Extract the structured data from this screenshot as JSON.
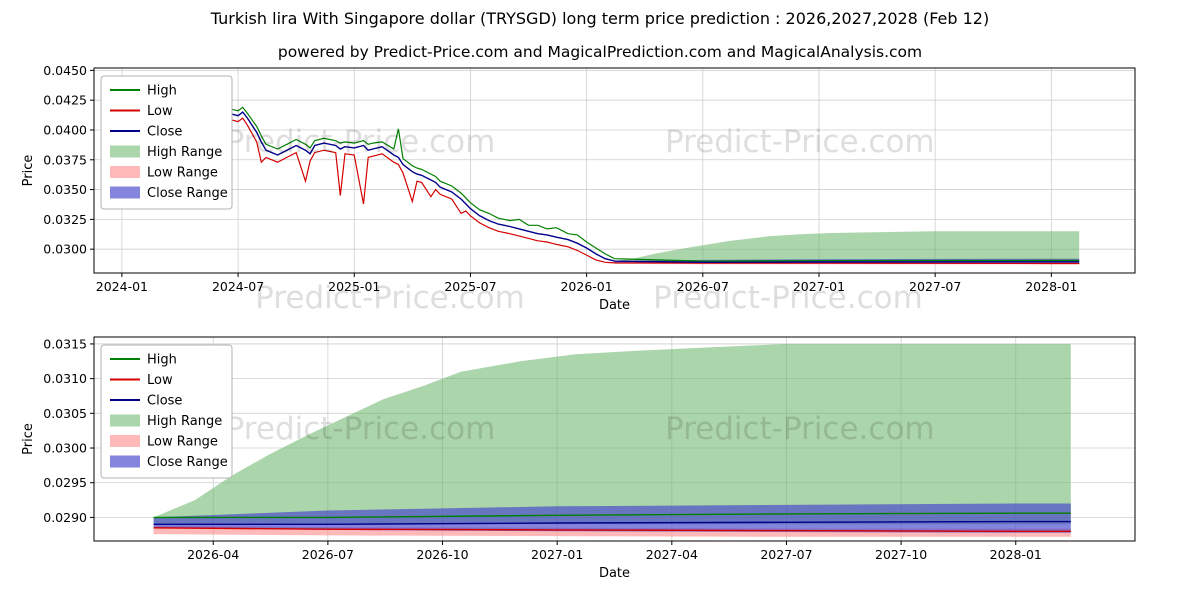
{
  "page": {
    "title": "Turkish lira With Singapore dollar (TRYSGD) long term price prediction : 2026,2027,2028 (Feb 12)",
    "subtitle": "powered by Predict-Price.com and MagicalPrediction.com and MagicalAnalysis.com",
    "watermark": "Predict-Price.com"
  },
  "colors": {
    "high_line": "#008000",
    "low_line": "#d40000",
    "close_line": "#00008b",
    "high_range": "#66b366",
    "low_range": "#ff8a8a",
    "close_range": "#4444cc",
    "grid": "#cfcfcf"
  },
  "chart_data": [
    {
      "type": "line",
      "title": "",
      "xlabel": "Date",
      "ylabel": "Price",
      "xlim": [
        2023.88,
        2028.36
      ],
      "ylim": [
        0.028,
        0.0452
      ],
      "grid": true,
      "legend_position": "upper-left",
      "xticks": {
        "values": [
          2024.0,
          2024.5,
          2025.0,
          2025.5,
          2026.0,
          2026.5,
          2027.0,
          2027.5,
          2028.0
        ],
        "labels": [
          "2024-01",
          "2024-07",
          "2025-01",
          "2025-07",
          "2026-01",
          "2026-07",
          "2027-01",
          "2027-07",
          "2028-01"
        ]
      },
      "yticks": {
        "values": [
          0.03,
          0.0325,
          0.035,
          0.0375,
          0.04,
          0.0425,
          0.045
        ],
        "labels": [
          "0.0300",
          "0.0325",
          "0.0350",
          "0.0375",
          "0.0400",
          "0.0425",
          "0.0450"
        ]
      },
      "legend": [
        {
          "label": "High",
          "kind": "line",
          "color": "#008000"
        },
        {
          "label": "Low",
          "kind": "line",
          "color": "#d40000"
        },
        {
          "label": "Close",
          "kind": "line",
          "color": "#00008b"
        },
        {
          "label": "High Range",
          "kind": "patch",
          "color": "#66b366",
          "opacity": 0.55
        },
        {
          "label": "Low Range",
          "kind": "patch",
          "color": "#ff8a8a",
          "opacity": 0.6
        },
        {
          "label": "Close Range",
          "kind": "patch",
          "color": "#4444cc",
          "opacity": 0.65
        }
      ],
      "bands": [
        {
          "name": "high-range",
          "color": "#66b366",
          "opacity": 0.55,
          "x": [
            2026.12,
            2026.21,
            2026.29,
            2026.37,
            2026.46,
            2026.54,
            2026.62,
            2026.71,
            2026.79,
            2026.92,
            2027.04,
            2027.17,
            2027.33,
            2027.5,
            2027.75,
            2028.0,
            2028.12
          ],
          "upper": [
            0.029,
            0.02925,
            0.0296,
            0.0299,
            0.0302,
            0.03045,
            0.0307,
            0.0309,
            0.0311,
            0.03125,
            0.03135,
            0.0314,
            0.03145,
            0.0315,
            0.0315,
            0.0315,
            0.0315
          ],
          "lower": 0.0289
        },
        {
          "name": "low-range",
          "color": "#ff8a8a",
          "opacity": 0.6,
          "x": [
            2026.12,
            2026.5,
            2027.0,
            2027.5,
            2028.0,
            2028.12
          ],
          "upper": [
            0.02888,
            0.02886,
            0.02885,
            0.02884,
            0.02884,
            0.02884
          ],
          "lower": [
            0.02876,
            0.02874,
            0.02873,
            0.02872,
            0.02872,
            0.02872
          ]
        },
        {
          "name": "close-range",
          "color": "#4444cc",
          "opacity": 0.65,
          "x": [
            2026.12,
            2026.5,
            2027.0,
            2027.5,
            2028.0,
            2028.12
          ],
          "upper": [
            0.029,
            0.0291,
            0.02916,
            0.02918,
            0.0292,
            0.0292
          ],
          "lower": [
            0.02885,
            0.02882,
            0.0288,
            0.02879,
            0.02878,
            0.02878
          ]
        }
      ],
      "lines": [
        {
          "name": "High",
          "color": "#008000",
          "width": 1.2,
          "x": [
            2024.08,
            2024.12,
            2024.17,
            2024.21,
            2024.25,
            2024.29,
            2024.33,
            2024.37,
            2024.42,
            2024.46,
            2024.5,
            2024.52,
            2024.54,
            2024.58,
            2024.6,
            2024.62,
            2024.67,
            2024.71,
            2024.75,
            2024.79,
            2024.81,
            2024.83,
            2024.87,
            2024.92,
            2024.94,
            2024.96,
            2025.0,
            2025.04,
            2025.06,
            2025.08,
            2025.12,
            2025.17,
            2025.19,
            2025.21,
            2025.25,
            2025.27,
            2025.29,
            2025.33,
            2025.35,
            2025.37,
            2025.42,
            2025.46,
            2025.48,
            2025.5,
            2025.54,
            2025.58,
            2025.62,
            2025.67,
            2025.71,
            2025.75,
            2025.79,
            2025.83,
            2025.87,
            2025.92,
            2025.96,
            2026.0,
            2026.04,
            2026.08,
            2026.12,
            2026.5,
            2027.0,
            2027.5,
            2028.0,
            2028.12
          ],
          "y": [
            0.0433,
            0.0429,
            0.0425,
            0.0421,
            0.0418,
            0.042,
            0.0417,
            0.042,
            0.0415,
            0.0418,
            0.0416,
            0.0419,
            0.0414,
            0.0403,
            0.0395,
            0.0388,
            0.0384,
            0.0388,
            0.0392,
            0.0388,
            0.0385,
            0.0391,
            0.0393,
            0.0391,
            0.0389,
            0.039,
            0.0389,
            0.0391,
            0.0388,
            0.0389,
            0.039,
            0.0384,
            0.0401,
            0.0376,
            0.037,
            0.0368,
            0.0367,
            0.0363,
            0.0361,
            0.0357,
            0.0353,
            0.0347,
            0.0343,
            0.0339,
            0.0333,
            0.033,
            0.0326,
            0.0324,
            0.0325,
            0.032,
            0.032,
            0.0317,
            0.0318,
            0.0313,
            0.0312,
            0.0306,
            0.0301,
            0.0296,
            0.0292,
            0.029,
            0.02903,
            0.02905,
            0.02906,
            0.02906
          ]
        },
        {
          "name": "Low",
          "color": "#d40000",
          "width": 1.2,
          "x": [
            2024.08,
            2024.12,
            2024.17,
            2024.21,
            2024.25,
            2024.29,
            2024.33,
            2024.37,
            2024.42,
            2024.46,
            2024.5,
            2024.52,
            2024.54,
            2024.58,
            2024.6,
            2024.62,
            2024.67,
            2024.71,
            2024.75,
            2024.79,
            2024.81,
            2024.83,
            2024.87,
            2024.92,
            2024.94,
            2024.96,
            2025.0,
            2025.04,
            2025.06,
            2025.08,
            2025.12,
            2025.17,
            2025.19,
            2025.21,
            2025.25,
            2025.27,
            2025.29,
            2025.33,
            2025.35,
            2025.37,
            2025.42,
            2025.46,
            2025.48,
            2025.5,
            2025.54,
            2025.58,
            2025.62,
            2025.67,
            2025.71,
            2025.75,
            2025.79,
            2025.83,
            2025.87,
            2025.92,
            2025.96,
            2026.0,
            2026.04,
            2026.08,
            2026.12,
            2026.5,
            2027.0,
            2027.5,
            2028.0,
            2028.12
          ],
          "y": [
            0.0424,
            0.042,
            0.0416,
            0.0412,
            0.0409,
            0.0411,
            0.0408,
            0.0411,
            0.0406,
            0.0409,
            0.0407,
            0.041,
            0.0404,
            0.039,
            0.0373,
            0.0377,
            0.0373,
            0.0377,
            0.0381,
            0.0357,
            0.0374,
            0.0381,
            0.0383,
            0.0381,
            0.0345,
            0.038,
            0.0379,
            0.0338,
            0.0377,
            0.0378,
            0.038,
            0.0373,
            0.0371,
            0.0364,
            0.034,
            0.0357,
            0.0356,
            0.0344,
            0.035,
            0.0346,
            0.0342,
            0.033,
            0.0332,
            0.0328,
            0.0322,
            0.0318,
            0.0315,
            0.0313,
            0.0311,
            0.0309,
            0.0307,
            0.0306,
            0.0304,
            0.0302,
            0.0299,
            0.0295,
            0.0291,
            0.0289,
            0.02885,
            0.02883,
            0.02882,
            0.02881,
            0.0288,
            0.0288
          ]
        },
        {
          "name": "Close",
          "color": "#00008b",
          "width": 1.4,
          "x": [
            2024.08,
            2024.12,
            2024.17,
            2024.21,
            2024.25,
            2024.29,
            2024.33,
            2024.37,
            2024.42,
            2024.46,
            2024.5,
            2024.52,
            2024.54,
            2024.58,
            2024.6,
            2024.62,
            2024.67,
            2024.71,
            2024.75,
            2024.79,
            2024.81,
            2024.83,
            2024.87,
            2024.92,
            2024.94,
            2024.96,
            2025.0,
            2025.04,
            2025.06,
            2025.08,
            2025.12,
            2025.17,
            2025.19,
            2025.21,
            2025.25,
            2025.27,
            2025.29,
            2025.33,
            2025.35,
            2025.37,
            2025.42,
            2025.46,
            2025.48,
            2025.5,
            2025.54,
            2025.58,
            2025.62,
            2025.67,
            2025.71,
            2025.75,
            2025.79,
            2025.83,
            2025.87,
            2025.92,
            2025.96,
            2026.0,
            2026.04,
            2026.08,
            2026.12,
            2026.5,
            2027.0,
            2027.5,
            2028.0,
            2028.12
          ],
          "y": [
            0.0429,
            0.0425,
            0.0421,
            0.0417,
            0.0414,
            0.0416,
            0.0413,
            0.0416,
            0.0411,
            0.0414,
            0.0412,
            0.0415,
            0.041,
            0.0398,
            0.039,
            0.0383,
            0.0379,
            0.0383,
            0.0387,
            0.0383,
            0.038,
            0.0387,
            0.0389,
            0.0387,
            0.0384,
            0.0386,
            0.0385,
            0.0387,
            0.0383,
            0.0384,
            0.0386,
            0.0379,
            0.0377,
            0.0371,
            0.0365,
            0.0363,
            0.0362,
            0.0358,
            0.0356,
            0.0352,
            0.0348,
            0.0342,
            0.0338,
            0.0334,
            0.0328,
            0.0324,
            0.0321,
            0.0319,
            0.0317,
            0.0315,
            0.0313,
            0.0312,
            0.031,
            0.0308,
            0.0305,
            0.0301,
            0.0296,
            0.0292,
            0.029,
            0.0289,
            0.02892,
            0.02893,
            0.02894,
            0.02894
          ]
        }
      ]
    },
    {
      "type": "line",
      "title": "",
      "xlabel": "Date",
      "ylabel": "Price",
      "xlim": [
        2025.99,
        2028.26
      ],
      "ylim": [
        0.02866,
        0.0316
      ],
      "grid": true,
      "legend_position": "upper-left",
      "xticks": {
        "values": [
          2026.25,
          2026.5,
          2026.75,
          2027.0,
          2027.25,
          2027.5,
          2027.75,
          2028.0
        ],
        "labels": [
          "2026-04",
          "2026-07",
          "2026-10",
          "2027-01",
          "2027-04",
          "2027-07",
          "2027-10",
          "2028-01"
        ]
      },
      "yticks": {
        "values": [
          0.029,
          0.0295,
          0.03,
          0.0305,
          0.031,
          0.0315
        ],
        "labels": [
          "0.0290",
          "0.0295",
          "0.0300",
          "0.0305",
          "0.0310",
          "0.0315"
        ]
      },
      "legend": [
        {
          "label": "High",
          "kind": "line",
          "color": "#008000"
        },
        {
          "label": "Low",
          "kind": "line",
          "color": "#d40000"
        },
        {
          "label": "Close",
          "kind": "line",
          "color": "#00008b"
        },
        {
          "label": "High Range",
          "kind": "patch",
          "color": "#66b366",
          "opacity": 0.55
        },
        {
          "label": "Low Range",
          "kind": "patch",
          "color": "#ff8a8a",
          "opacity": 0.6
        },
        {
          "label": "Close Range",
          "kind": "patch",
          "color": "#4444cc",
          "opacity": 0.65
        }
      ],
      "bands": [
        {
          "name": "high-range",
          "color": "#66b366",
          "opacity": 0.55,
          "x": [
            2026.12,
            2026.21,
            2026.29,
            2026.37,
            2026.46,
            2026.54,
            2026.62,
            2026.71,
            2026.79,
            2026.92,
            2027.04,
            2027.17,
            2027.33,
            2027.5,
            2027.75,
            2028.0,
            2028.12
          ],
          "upper": [
            0.029,
            0.02925,
            0.0296,
            0.0299,
            0.0302,
            0.03045,
            0.0307,
            0.0309,
            0.0311,
            0.03125,
            0.03135,
            0.0314,
            0.03145,
            0.0315,
            0.0315,
            0.0315,
            0.0315
          ],
          "lower": 0.0289
        },
        {
          "name": "low-range",
          "color": "#ff8a8a",
          "opacity": 0.6,
          "x": [
            2026.12,
            2026.5,
            2027.0,
            2027.5,
            2028.0,
            2028.12
          ],
          "upper": [
            0.02888,
            0.02886,
            0.02885,
            0.02884,
            0.02884,
            0.02884
          ],
          "lower": [
            0.02876,
            0.02874,
            0.02873,
            0.02872,
            0.02872,
            0.02872
          ]
        },
        {
          "name": "close-range",
          "color": "#4444cc",
          "opacity": 0.65,
          "x": [
            2026.12,
            2026.5,
            2027.0,
            2027.5,
            2028.0,
            2028.12
          ],
          "upper": [
            0.029,
            0.0291,
            0.02916,
            0.02918,
            0.0292,
            0.0292
          ],
          "lower": [
            0.02885,
            0.02882,
            0.0288,
            0.02879,
            0.02878,
            0.02878
          ]
        }
      ],
      "lines": [
        {
          "name": "High",
          "color": "#008000",
          "width": 1.4,
          "x": [
            2026.12,
            2026.5,
            2027.0,
            2027.5,
            2028.0,
            2028.12
          ],
          "y": [
            0.029,
            0.029,
            0.02903,
            0.02905,
            0.02906,
            0.02906
          ]
        },
        {
          "name": "Low",
          "color": "#d40000",
          "width": 1.4,
          "x": [
            2026.12,
            2026.5,
            2027.0,
            2027.5,
            2028.0,
            2028.12
          ],
          "y": [
            0.02885,
            0.02883,
            0.02882,
            0.02881,
            0.0288,
            0.0288
          ]
        },
        {
          "name": "Close",
          "color": "#00008b",
          "width": 1.4,
          "x": [
            2026.12,
            2026.5,
            2027.0,
            2027.5,
            2028.0,
            2028.12
          ],
          "y": [
            0.0289,
            0.0289,
            0.02892,
            0.02893,
            0.02894,
            0.02894
          ]
        }
      ]
    }
  ]
}
